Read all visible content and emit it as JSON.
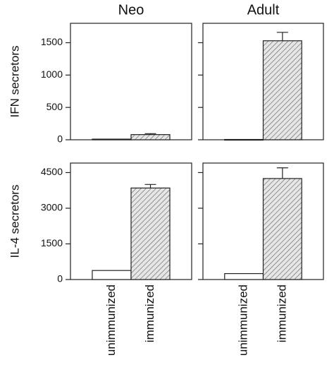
{
  "chart_data": [
    {
      "type": "bar",
      "title": "Neo",
      "ylabel": "IFN secretors",
      "categories": [
        null,
        null
      ],
      "values": [
        10,
        80
      ],
      "errors": [
        null,
        15
      ],
      "bar_styles": [
        "plain",
        "hatched"
      ],
      "ylim": [
        0,
        1800
      ],
      "yticks": [
        0,
        500,
        1000,
        1500
      ],
      "show_ytick_labels": true
    },
    {
      "type": "bar",
      "title": "Adult",
      "categories": [
        null,
        null
      ],
      "values": [
        5,
        1530
      ],
      "errors": [
        null,
        130
      ],
      "bar_styles": [
        "plain",
        "hatched"
      ],
      "ylim": [
        0,
        1800
      ],
      "yticks": [
        0,
        500,
        1000,
        1500
      ],
      "show_ytick_labels": false
    },
    {
      "type": "bar",
      "ylabel": "IL-4 secretors",
      "categories": [
        "unimmunized",
        "immunized"
      ],
      "values": [
        380,
        3850
      ],
      "errors": [
        null,
        150
      ],
      "bar_styles": [
        "plain",
        "hatched"
      ],
      "ylim": [
        0,
        4900
      ],
      "yticks": [
        0,
        1500,
        3000,
        4500
      ],
      "show_ytick_labels": true
    },
    {
      "type": "bar",
      "categories": [
        "unimmunized",
        "immunized"
      ],
      "values": [
        250,
        4250
      ],
      "errors": [
        null,
        450
      ],
      "bar_styles": [
        "plain",
        "hatched"
      ],
      "ylim": [
        0,
        4900
      ],
      "yticks": [
        0,
        1500,
        3000,
        4500
      ],
      "show_ytick_labels": false
    }
  ]
}
